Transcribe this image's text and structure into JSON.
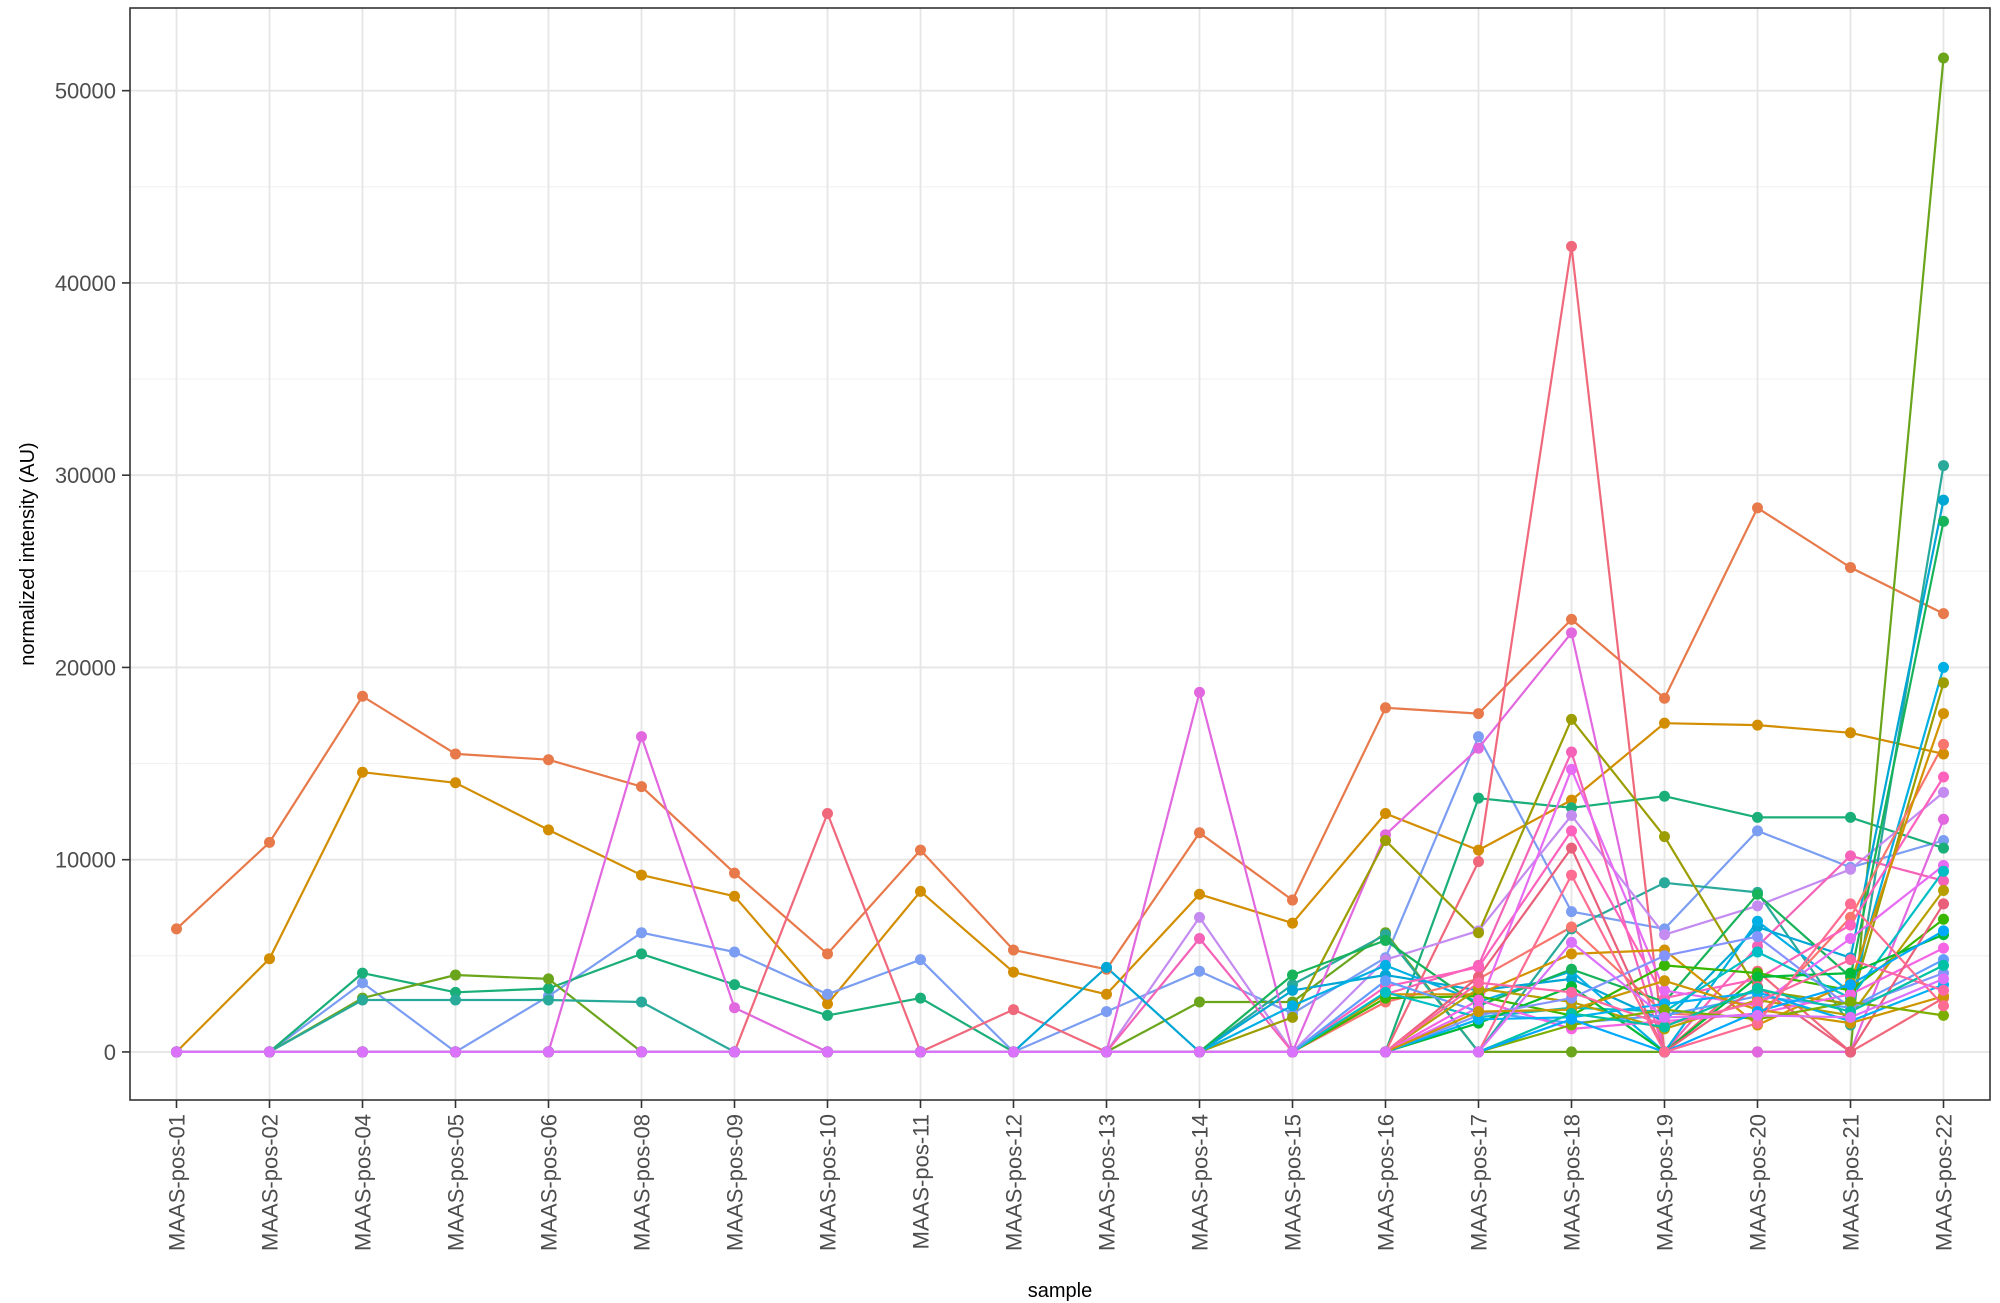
{
  "chart_data": {
    "type": "line",
    "title": "",
    "xlabel": "sample",
    "ylabel": "normalized intensity (AU)",
    "ylim": [
      -2500,
      54300
    ],
    "y_ticks": [
      0,
      10000,
      20000,
      30000,
      40000,
      50000
    ],
    "y_tick_labels": [
      "0",
      "10000",
      "20000",
      "30000",
      "40000",
      "50000"
    ],
    "categories": [
      "MAAS-pos-01",
      "MAAS-pos-02",
      "MAAS-pos-04",
      "MAAS-pos-05",
      "MAAS-pos-06",
      "MAAS-pos-08",
      "MAAS-pos-09",
      "MAAS-pos-10",
      "MAAS-pos-11",
      "MAAS-pos-12",
      "MAAS-pos-13",
      "MAAS-pos-14",
      "MAAS-pos-15",
      "MAAS-pos-16",
      "MAAS-pos-17",
      "MAAS-pos-18",
      "MAAS-pos-19",
      "MAAS-pos-20",
      "MAAS-pos-21",
      "MAAS-pos-22"
    ],
    "grid": true,
    "legend": "none",
    "series": [
      {
        "color": "#E7794A",
        "values": [
          6400,
          10900,
          18500,
          15500,
          15200,
          13800,
          9300,
          5100,
          10500,
          5300,
          4300,
          11400,
          7900,
          17900,
          17600,
          22500,
          18400,
          28300,
          25200,
          22800
        ]
      },
      {
        "color": "#D28E00",
        "values": [
          0,
          4850,
          14550,
          14000,
          11550,
          9200,
          8100,
          2500,
          8350,
          4150,
          3000,
          8200,
          6700,
          12400,
          10500,
          13100,
          17100,
          17000,
          16600,
          15500
        ]
      },
      {
        "color": "#7B9DF2",
        "values": [
          0,
          0,
          3600,
          0,
          2900,
          6200,
          5200,
          3000,
          4800,
          0,
          2100,
          4200,
          2000,
          4900,
          16400,
          7300,
          6400,
          11500,
          9600,
          11000
        ]
      },
      {
        "color": "#1AAE79",
        "values": [
          0,
          0,
          4100,
          3100,
          3300,
          5100,
          3500,
          1900,
          2800,
          0,
          0,
          0,
          0,
          0,
          13200,
          12700,
          13300,
          12200,
          12200,
          10600
        ]
      },
      {
        "color": "#6BA51C",
        "values": [
          0,
          0,
          2800,
          4000,
          3800,
          0,
          0,
          0,
          0,
          0,
          0,
          2600,
          2600,
          6200,
          0,
          0,
          0,
          0,
          0,
          51700
        ]
      },
      {
        "color": "#28A99A",
        "values": [
          0,
          0,
          2700,
          2700,
          2700,
          2600,
          0,
          0,
          0,
          0,
          0,
          0,
          3500,
          6100,
          0,
          6400,
          8800,
          8300,
          1400,
          30500
        ]
      },
      {
        "color": "#E268E0",
        "values": [
          0,
          0,
          0,
          0,
          0,
          16400,
          2300,
          0,
          0,
          0,
          0,
          18700,
          0,
          11300,
          15800,
          21800,
          0,
          0,
          0,
          12100
        ]
      },
      {
        "color": "#F0687C",
        "values": [
          0,
          0,
          0,
          0,
          0,
          0,
          0,
          12400,
          0,
          2200,
          0,
          0,
          0,
          0,
          9900,
          41900,
          0,
          4200,
          0,
          2800
        ]
      },
      {
        "color": "#C48BF0",
        "values": [
          0,
          0,
          0,
          0,
          0,
          0,
          0,
          0,
          0,
          0,
          0,
          7000,
          0,
          4800,
          6300,
          12300,
          6100,
          7600,
          9500,
          13500
        ]
      },
      {
        "color": "#F463B8",
        "values": [
          0,
          0,
          0,
          0,
          0,
          0,
          0,
          0,
          0,
          0,
          0,
          5900,
          0,
          3000,
          4500,
          15600,
          0,
          5500,
          10200,
          8900
        ]
      },
      {
        "color": "#00A6D4",
        "values": [
          0,
          0,
          0,
          0,
          0,
          0,
          0,
          0,
          0,
          0,
          4400,
          0,
          3200,
          4000,
          3200,
          3800,
          1600,
          6500,
          4900,
          28700
        ]
      },
      {
        "color": "#9B9D00",
        "values": [
          0,
          0,
          0,
          0,
          0,
          0,
          0,
          0,
          0,
          0,
          0,
          0,
          1800,
          11000,
          6200,
          17300,
          11200,
          3200,
          2500,
          19200
        ]
      },
      {
        "color": "#00AFE4",
        "values": [
          0,
          0,
          0,
          0,
          0,
          0,
          0,
          0,
          0,
          0,
          0,
          0,
          2400,
          4500,
          2600,
          4200,
          0,
          6800,
          3100,
          20000
        ]
      },
      {
        "color": "#17B35A",
        "values": [
          0,
          0,
          0,
          0,
          0,
          0,
          0,
          0,
          0,
          0,
          0,
          0,
          4000,
          5800,
          2400,
          4300,
          2600,
          8200,
          3900,
          27600
        ]
      },
      {
        "color": "#F8766D",
        "values": [
          0,
          0,
          0,
          0,
          0,
          0,
          0,
          0,
          0,
          0,
          0,
          0,
          0,
          2600,
          3800,
          6500,
          2000,
          1800,
          7000,
          16000
        ]
      },
      {
        "color": "#FF62BC",
        "values": [
          0,
          0,
          0,
          0,
          0,
          0,
          0,
          0,
          0,
          0,
          0,
          0,
          0,
          3400,
          4400,
          11500,
          2800,
          3800,
          6600,
          14300
        ]
      },
      {
        "color": "#E76BF3",
        "values": [
          0,
          0,
          0,
          0,
          0,
          0,
          0,
          0,
          0,
          0,
          0,
          0,
          0,
          0,
          2300,
          14700,
          3200,
          2400,
          5900,
          9700
        ]
      },
      {
        "color": "#D39200",
        "values": [
          0,
          0,
          0,
          0,
          0,
          0,
          0,
          0,
          0,
          0,
          0,
          0,
          0,
          3000,
          3000,
          5100,
          5300,
          1400,
          3600,
          17600
        ]
      },
      {
        "color": "#39B600",
        "values": [
          0,
          0,
          0,
          0,
          0,
          0,
          0,
          0,
          0,
          0,
          0,
          0,
          0,
          2800,
          2900,
          1900,
          4500,
          4100,
          3200,
          6900
        ]
      },
      {
        "color": "#00BFC4",
        "values": [
          0,
          0,
          0,
          0,
          0,
          0,
          0,
          0,
          0,
          0,
          0,
          0,
          0,
          3100,
          1800,
          2300,
          2100,
          5200,
          2800,
          9400
        ]
      },
      {
        "color": "#619CFF",
        "values": [
          0,
          0,
          0,
          0,
          0,
          0,
          0,
          0,
          0,
          0,
          0,
          0,
          0,
          3700,
          2100,
          1500,
          1900,
          2900,
          2300,
          4800
        ]
      },
      {
        "color": "#B79F00",
        "values": [
          0,
          0,
          0,
          0,
          0,
          0,
          0,
          0,
          0,
          0,
          0,
          0,
          0,
          0,
          3300,
          2600,
          1200,
          2700,
          1900,
          8400
        ]
      },
      {
        "color": "#00BA38",
        "values": [
          0,
          0,
          0,
          0,
          0,
          0,
          0,
          0,
          0,
          0,
          0,
          0,
          0,
          0,
          1500,
          3400,
          0,
          3900,
          4100,
          6100
        ]
      },
      {
        "color": "#F564E3",
        "values": [
          0,
          0,
          0,
          0,
          0,
          0,
          0,
          0,
          0,
          0,
          0,
          0,
          0,
          0,
          2700,
          1200,
          1600,
          2000,
          3000,
          5400
        ]
      },
      {
        "color": "#E9607A",
        "values": [
          0,
          0,
          0,
          0,
          0,
          0,
          0,
          0,
          0,
          0,
          0,
          0,
          0,
          0,
          3900,
          10600,
          0,
          3400,
          0,
          7700
        ]
      },
      {
        "color": "#8494FF",
        "values": [
          0,
          0,
          0,
          0,
          0,
          0,
          0,
          0,
          0,
          0,
          0,
          0,
          0,
          0,
          1900,
          2800,
          5000,
          6000,
          2300,
          4100
        ]
      },
      {
        "color": "#00B0F6",
        "values": [
          0,
          0,
          0,
          0,
          0,
          0,
          0,
          0,
          0,
          0,
          0,
          0,
          0,
          0,
          1700,
          1800,
          2500,
          3100,
          1600,
          3500
        ]
      },
      {
        "color": "#CD9600",
        "values": [
          0,
          0,
          0,
          0,
          0,
          0,
          0,
          0,
          0,
          0,
          0,
          0,
          0,
          0,
          2100,
          2200,
          3700,
          2200,
          1500,
          2900
        ]
      },
      {
        "color": "#FF67A4",
        "values": [
          0,
          0,
          0,
          0,
          0,
          0,
          0,
          0,
          0,
          0,
          0,
          0,
          0,
          0,
          3600,
          3100,
          1400,
          2600,
          4800,
          3200
        ]
      },
      {
        "color": "#7CAE00",
        "values": [
          0,
          0,
          0,
          0,
          0,
          0,
          0,
          0,
          0,
          0,
          0,
          0,
          0,
          0,
          0,
          1400,
          2200,
          1700,
          2600,
          1900
        ]
      },
      {
        "color": "#00C1A3",
        "values": [
          0,
          0,
          0,
          0,
          0,
          0,
          0,
          0,
          0,
          0,
          0,
          0,
          0,
          0,
          0,
          2000,
          1300,
          3300,
          2100,
          4500
        ]
      },
      {
        "color": "#00A9FF",
        "values": [
          0,
          0,
          0,
          0,
          0,
          0,
          0,
          0,
          0,
          0,
          0,
          0,
          0,
          0,
          0,
          1700,
          0,
          2100,
          3500,
          6300
        ]
      },
      {
        "color": "#FF6C91",
        "values": [
          0,
          0,
          0,
          0,
          0,
          0,
          0,
          0,
          0,
          0,
          0,
          0,
          0,
          0,
          0,
          9200,
          0,
          1500,
          7700,
          2400
        ]
      },
      {
        "color": "#DB72FB",
        "values": [
          0,
          0,
          0,
          0,
          0,
          0,
          0,
          0,
          0,
          0,
          0,
          0,
          0,
          0,
          0,
          5700,
          1800,
          1900,
          1800,
          3800
        ]
      }
    ]
  }
}
